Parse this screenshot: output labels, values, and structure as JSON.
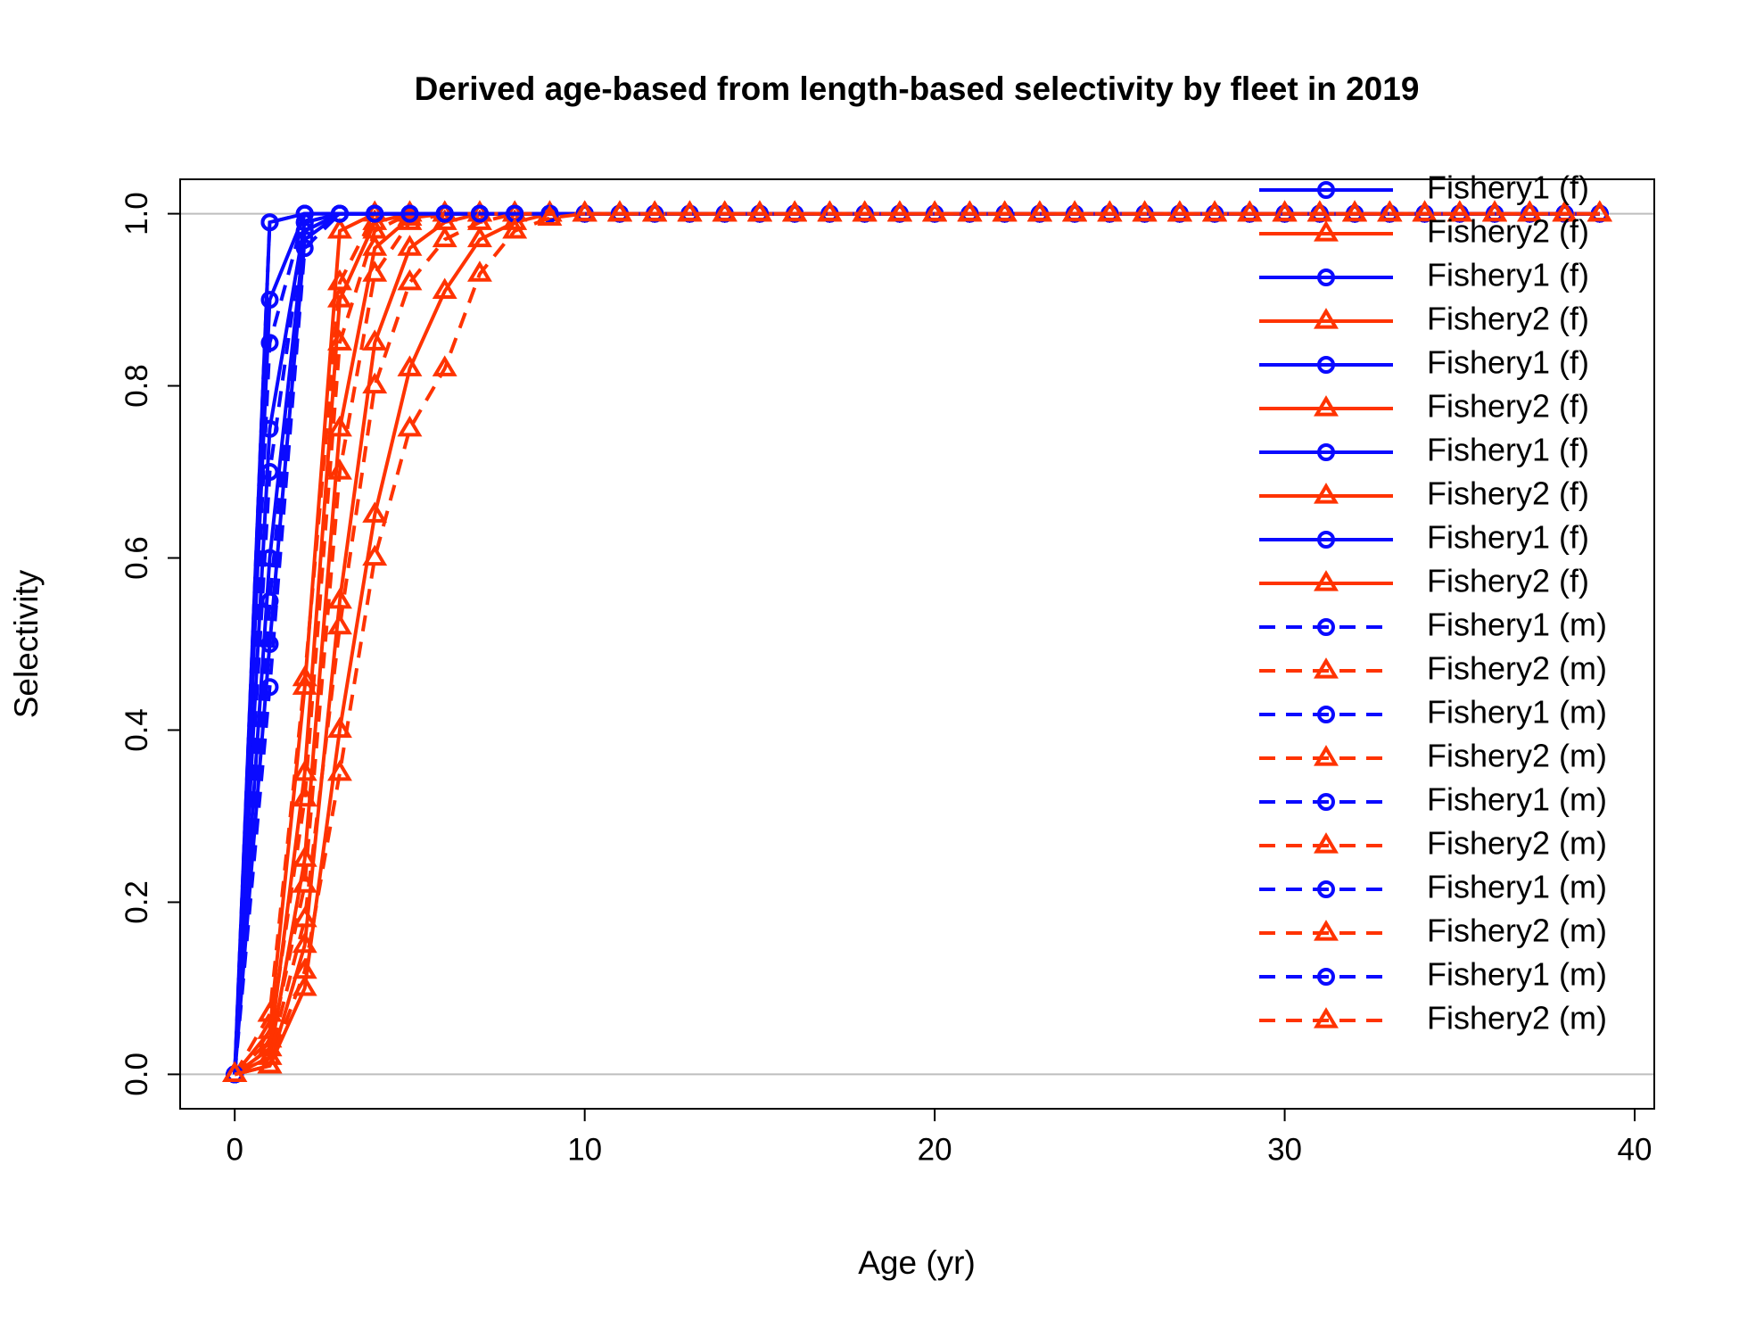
{
  "chart_data": {
    "type": "line",
    "title": "Derived age-based from length-based selectivity by fleet in 2019",
    "xlabel": "Age (yr)",
    "ylabel": "Selectivity",
    "xlim": [
      -1.56,
      40.56
    ],
    "ylim": [
      -0.04,
      1.04
    ],
    "xticks": [
      0,
      10,
      20,
      30,
      40
    ],
    "yticks": [
      {
        "value": 0,
        "label": "0.0"
      },
      0.2,
      0.4,
      0.6,
      0.8,
      {
        "value": 1,
        "label": "1.0"
      }
    ],
    "reference_lines": [
      0,
      1
    ],
    "legend": "top-right",
    "x": [
      0,
      1,
      2,
      3,
      4,
      5,
      6,
      7,
      8,
      9,
      10,
      11,
      12,
      13,
      14,
      15,
      16,
      17,
      18,
      19,
      20,
      21,
      22,
      23,
      24,
      25,
      26,
      27,
      28,
      29,
      30,
      31,
      32,
      33,
      34,
      35,
      36,
      37,
      38,
      39
    ],
    "series": [
      {
        "name": "Fishery1 (f)",
        "color": "#0a0aff",
        "linestyle": "solid",
        "marker": "circle",
        "values": [
          0,
          0.99,
          1,
          1,
          1,
          1,
          1,
          1,
          1,
          1,
          1,
          1,
          1,
          1,
          1,
          1,
          1,
          1,
          1,
          1,
          1,
          1,
          1,
          1,
          1,
          1,
          1,
          1,
          1,
          1,
          1,
          1,
          1,
          1,
          1,
          1,
          1,
          1,
          1,
          1
        ]
      },
      {
        "name": "Fishery2 (f)",
        "color": "#ff3300",
        "linestyle": "solid",
        "marker": "triangle",
        "values": [
          0,
          0.05,
          0.45,
          0.98,
          1,
          1,
          1,
          1,
          1,
          1,
          1,
          1,
          1,
          1,
          1,
          1,
          1,
          1,
          1,
          1,
          1,
          1,
          1,
          1,
          1,
          1,
          1,
          1,
          1,
          1,
          1,
          1,
          1,
          1,
          1,
          1,
          1,
          1,
          1,
          1
        ]
      },
      {
        "name": "Fishery1 (f)",
        "color": "#0a0aff",
        "linestyle": "solid",
        "marker": "circle",
        "values": [
          0,
          0.9,
          1,
          1,
          1,
          1,
          1,
          1,
          1,
          1,
          1,
          1,
          1,
          1,
          1,
          1,
          1,
          1,
          1,
          1,
          1,
          1,
          1,
          1,
          1,
          1,
          1,
          1,
          1,
          1,
          1,
          1,
          1,
          1,
          1,
          1,
          1,
          1,
          1,
          1
        ]
      },
      {
        "name": "Fishery2 (f)",
        "color": "#ff3300",
        "linestyle": "solid",
        "marker": "triangle",
        "values": [
          0,
          0.03,
          0.35,
          0.9,
          0.99,
          1,
          1,
          1,
          1,
          1,
          1,
          1,
          1,
          1,
          1,
          1,
          1,
          1,
          1,
          1,
          1,
          1,
          1,
          1,
          1,
          1,
          1,
          1,
          1,
          1,
          1,
          1,
          1,
          1,
          1,
          1,
          1,
          1,
          1,
          1
        ]
      },
      {
        "name": "Fishery1 (f)",
        "color": "#0a0aff",
        "linestyle": "solid",
        "marker": "circle",
        "values": [
          0,
          0.75,
          0.99,
          1,
          1,
          1,
          1,
          1,
          1,
          1,
          1,
          1,
          1,
          1,
          1,
          1,
          1,
          1,
          1,
          1,
          1,
          1,
          1,
          1,
          1,
          1,
          1,
          1,
          1,
          1,
          1,
          1,
          1,
          1,
          1,
          1,
          1,
          1,
          1,
          1
        ]
      },
      {
        "name": "Fishery2 (f)",
        "color": "#ff3300",
        "linestyle": "solid",
        "marker": "triangle",
        "values": [
          0,
          0.02,
          0.25,
          0.75,
          0.96,
          0.995,
          1,
          1,
          1,
          1,
          1,
          1,
          1,
          1,
          1,
          1,
          1,
          1,
          1,
          1,
          1,
          1,
          1,
          1,
          1,
          1,
          1,
          1,
          1,
          1,
          1,
          1,
          1,
          1,
          1,
          1,
          1,
          1,
          1,
          1
        ]
      },
      {
        "name": "Fishery1 (f)",
        "color": "#0a0aff",
        "linestyle": "solid",
        "marker": "circle",
        "values": [
          0,
          0.6,
          0.98,
          1,
          1,
          1,
          1,
          1,
          1,
          1,
          1,
          1,
          1,
          1,
          1,
          1,
          1,
          1,
          1,
          1,
          1,
          1,
          1,
          1,
          1,
          1,
          1,
          1,
          1,
          1,
          1,
          1,
          1,
          1,
          1,
          1,
          1,
          1,
          1,
          1
        ]
      },
      {
        "name": "Fishery2 (f)",
        "color": "#ff3300",
        "linestyle": "solid",
        "marker": "triangle",
        "values": [
          0,
          0.01,
          0.15,
          0.55,
          0.85,
          0.96,
          0.99,
          1,
          1,
          1,
          1,
          1,
          1,
          1,
          1,
          1,
          1,
          1,
          1,
          1,
          1,
          1,
          1,
          1,
          1,
          1,
          1,
          1,
          1,
          1,
          1,
          1,
          1,
          1,
          1,
          1,
          1,
          1,
          1,
          1
        ]
      },
      {
        "name": "Fishery1 (f)",
        "color": "#0a0aff",
        "linestyle": "solid",
        "marker": "circle",
        "values": [
          0,
          0.5,
          0.97,
          1,
          1,
          1,
          1,
          1,
          1,
          1,
          1,
          1,
          1,
          1,
          1,
          1,
          1,
          1,
          1,
          1,
          1,
          1,
          1,
          1,
          1,
          1,
          1,
          1,
          1,
          1,
          1,
          1,
          1,
          1,
          1,
          1,
          1,
          1,
          1,
          1
        ]
      },
      {
        "name": "Fishery2 (f)",
        "color": "#ff3300",
        "linestyle": "solid",
        "marker": "triangle",
        "values": [
          0,
          0.01,
          0.1,
          0.4,
          0.65,
          0.82,
          0.91,
          0.97,
          0.99,
          1,
          1,
          1,
          1,
          1,
          1,
          1,
          1,
          1,
          1,
          1,
          1,
          1,
          1,
          1,
          1,
          1,
          1,
          1,
          1,
          1,
          1,
          1,
          1,
          1,
          1,
          1,
          1,
          1,
          1,
          1
        ]
      },
      {
        "name": "Fishery1 (m)",
        "color": "#0a0aff",
        "linestyle": "dashed",
        "marker": "circle",
        "values": [
          0,
          0.99,
          1,
          1,
          1,
          1,
          1,
          1,
          1,
          1,
          1,
          1,
          1,
          1,
          1,
          1,
          1,
          1,
          1,
          1,
          1,
          1,
          1,
          1,
          1,
          1,
          1,
          1,
          1,
          1,
          1,
          1,
          1,
          1,
          1,
          1,
          1,
          1,
          1,
          1
        ]
      },
      {
        "name": "Fishery2 (m)",
        "color": "#ff3300",
        "linestyle": "dashed",
        "marker": "triangle",
        "values": [
          0,
          0.07,
          0.46,
          0.92,
          1,
          1,
          1,
          1,
          1,
          1,
          1,
          1,
          1,
          1,
          1,
          1,
          1,
          1,
          1,
          1,
          1,
          1,
          1,
          1,
          1,
          1,
          1,
          1,
          1,
          1,
          1,
          1,
          1,
          1,
          1,
          1,
          1,
          1,
          1,
          1
        ]
      },
      {
        "name": "Fishery1 (m)",
        "color": "#0a0aff",
        "linestyle": "dashed",
        "marker": "circle",
        "values": [
          0,
          0.85,
          1,
          1,
          1,
          1,
          1,
          1,
          1,
          1,
          1,
          1,
          1,
          1,
          1,
          1,
          1,
          1,
          1,
          1,
          1,
          1,
          1,
          1,
          1,
          1,
          1,
          1,
          1,
          1,
          1,
          1,
          1,
          1,
          1,
          1,
          1,
          1,
          1,
          1
        ]
      },
      {
        "name": "Fishery2 (m)",
        "color": "#ff3300",
        "linestyle": "dashed",
        "marker": "triangle",
        "values": [
          0,
          0.04,
          0.32,
          0.85,
          0.98,
          1,
          1,
          1,
          1,
          1,
          1,
          1,
          1,
          1,
          1,
          1,
          1,
          1,
          1,
          1,
          1,
          1,
          1,
          1,
          1,
          1,
          1,
          1,
          1,
          1,
          1,
          1,
          1,
          1,
          1,
          1,
          1,
          1,
          1,
          1
        ]
      },
      {
        "name": "Fishery1 (m)",
        "color": "#0a0aff",
        "linestyle": "dashed",
        "marker": "circle",
        "values": [
          0,
          0.7,
          0.99,
          1,
          1,
          1,
          1,
          1,
          1,
          1,
          1,
          1,
          1,
          1,
          1,
          1,
          1,
          1,
          1,
          1,
          1,
          1,
          1,
          1,
          1,
          1,
          1,
          1,
          1,
          1,
          1,
          1,
          1,
          1,
          1,
          1,
          1,
          1,
          1,
          1
        ]
      },
      {
        "name": "Fishery2 (m)",
        "color": "#ff3300",
        "linestyle": "dashed",
        "marker": "triangle",
        "values": [
          0,
          0.03,
          0.22,
          0.7,
          0.93,
          0.99,
          1,
          1,
          1,
          1,
          1,
          1,
          1,
          1,
          1,
          1,
          1,
          1,
          1,
          1,
          1,
          1,
          1,
          1,
          1,
          1,
          1,
          1,
          1,
          1,
          1,
          1,
          1,
          1,
          1,
          1,
          1,
          1,
          1,
          1
        ]
      },
      {
        "name": "Fishery1 (m)",
        "color": "#0a0aff",
        "linestyle": "dashed",
        "marker": "circle",
        "values": [
          0,
          0.55,
          0.98,
          1,
          1,
          1,
          1,
          1,
          1,
          1,
          1,
          1,
          1,
          1,
          1,
          1,
          1,
          1,
          1,
          1,
          1,
          1,
          1,
          1,
          1,
          1,
          1,
          1,
          1,
          1,
          1,
          1,
          1,
          1,
          1,
          1,
          1,
          1,
          1,
          1
        ]
      },
      {
        "name": "Fishery2 (m)",
        "color": "#ff3300",
        "linestyle": "dashed",
        "marker": "triangle",
        "values": [
          0,
          0.02,
          0.18,
          0.52,
          0.8,
          0.92,
          0.97,
          0.99,
          1,
          1,
          1,
          1,
          1,
          1,
          1,
          1,
          1,
          1,
          1,
          1,
          1,
          1,
          1,
          1,
          1,
          1,
          1,
          1,
          1,
          1,
          1,
          1,
          1,
          1,
          1,
          1,
          1,
          1,
          1,
          1
        ]
      },
      {
        "name": "Fishery1 (m)",
        "color": "#0a0aff",
        "linestyle": "dashed",
        "marker": "circle",
        "values": [
          0,
          0.45,
          0.96,
          1,
          1,
          1,
          1,
          1,
          1,
          1,
          1,
          1,
          1,
          1,
          1,
          1,
          1,
          1,
          1,
          1,
          1,
          1,
          1,
          1,
          1,
          1,
          1,
          1,
          1,
          1,
          1,
          1,
          1,
          1,
          1,
          1,
          1,
          1,
          1,
          1
        ]
      },
      {
        "name": "Fishery2 (m)",
        "color": "#ff3300",
        "linestyle": "dashed",
        "marker": "triangle",
        "values": [
          0,
          0.01,
          0.12,
          0.35,
          0.6,
          0.75,
          0.82,
          0.93,
          0.98,
          0.995,
          1,
          1,
          1,
          1,
          1,
          1,
          1,
          1,
          1,
          1,
          1,
          1,
          1,
          1,
          1,
          1,
          1,
          1,
          1,
          1,
          1,
          1,
          1,
          1,
          1,
          1,
          1,
          1,
          1,
          1
        ]
      }
    ]
  }
}
